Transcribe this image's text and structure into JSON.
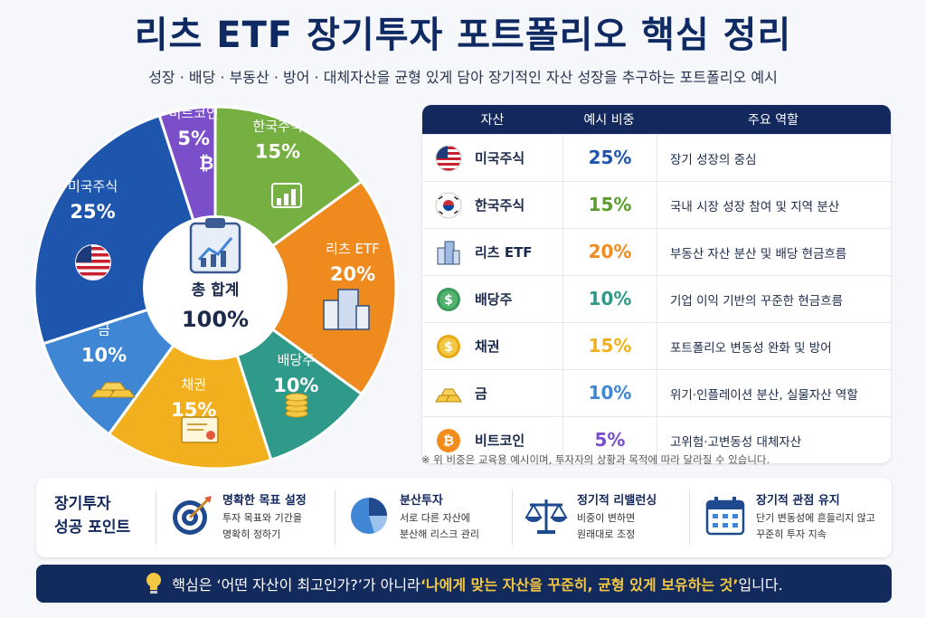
{
  "title": "리츠 ETF 장기투자 포트폴리오 핵심 정리",
  "subtitle": "성장 · 배당 · 부동산 · 방어 · 대체자산을 균형 있게 담아 장기적인 자산 성장을 추구하는 포트폴리오 예시",
  "chart_data": {
    "type": "pie",
    "categories": [
      "비트코인",
      "한국주식",
      "리츠 ETF",
      "배당주",
      "채권",
      "금",
      "미국주식"
    ],
    "values": [
      5,
      15,
      20,
      10,
      15,
      10,
      25
    ],
    "labels": [
      "5%",
      "15%",
      "20%",
      "10%",
      "15%",
      "10%",
      "25%"
    ],
    "colors": [
      "#7b4fc9",
      "#76b043",
      "#ef8a1f",
      "#2f9a8a",
      "#f2b01e",
      "#3f86d4",
      "#1f56ad"
    ],
    "center_label": "총 합계",
    "center_value": "100%"
  },
  "table": {
    "headers": [
      "자산",
      "예시 비중",
      "주요 역할"
    ],
    "rows": [
      {
        "asset": "미국주식",
        "pct": "25%",
        "role": "장기 성장의 중심",
        "color": "#1f56ad",
        "icon": "us-flag-icon"
      },
      {
        "asset": "한국주식",
        "pct": "15%",
        "role": "국내 시장 성장 참여 및 지역 분산",
        "color": "#5a9e2e",
        "icon": "korea-flag-icon"
      },
      {
        "asset": "리츠 ETF",
        "pct": "20%",
        "role": "부동산 자산 분산 및 배당 현금흐름",
        "color": "#ef8a1f",
        "icon": "building-icon"
      },
      {
        "asset": "배당주",
        "pct": "10%",
        "role": "기업 이익 기반의 꾸준한 현금흐름",
        "color": "#2f9a8a",
        "icon": "dollar-coin-icon"
      },
      {
        "asset": "채권",
        "pct": "15%",
        "role": "포트폴리오 변동성 완화 및 방어",
        "color": "#f2b01e",
        "icon": "gold-coin-icon"
      },
      {
        "asset": "금",
        "pct": "10%",
        "role": "위기·인플레이션 분산, 실물자산 역할",
        "color": "#3f86d4",
        "icon": "gold-bar-icon"
      },
      {
        "asset": "비트코인",
        "pct": "5%",
        "role": "고위험·고변동성 대체자산",
        "color": "#7b4fc9",
        "icon": "bitcoin-icon"
      }
    ]
  },
  "footnote": "※ 위 비중은 교육용 예시이며, 투자자의 상황과 목적에 따라 달라질 수 있습니다.",
  "points": {
    "title_line1": "장기투자",
    "title_line2": "성공 포인트",
    "items": [
      {
        "head": "명확한 목표 설정",
        "desc1": "투자 목표와 기간을",
        "desc2": "명확히 정하기",
        "icon": "target-icon"
      },
      {
        "head": "분산투자",
        "desc1": "서로 다른 자산에",
        "desc2": "분산해 리스크 관리",
        "icon": "pie-chart-icon"
      },
      {
        "head": "정기적 리밸런싱",
        "desc1": "비중이 변하면",
        "desc2": "원래대로 조정",
        "icon": "scale-icon"
      },
      {
        "head": "장기적 관점 유지",
        "desc1": "단기 변동성에 흔들리지 않고",
        "desc2": "꾸준히 투자 지속",
        "icon": "calendar-icon"
      }
    ]
  },
  "banner": {
    "prefix": "핵심은 ‘어떤 자산이 최고인가?’가 아니라 ",
    "highlight": "‘나에게 맞는 자산을 꾸준히, 균형 있게 보유하는 것’",
    "suffix": "입니다."
  }
}
